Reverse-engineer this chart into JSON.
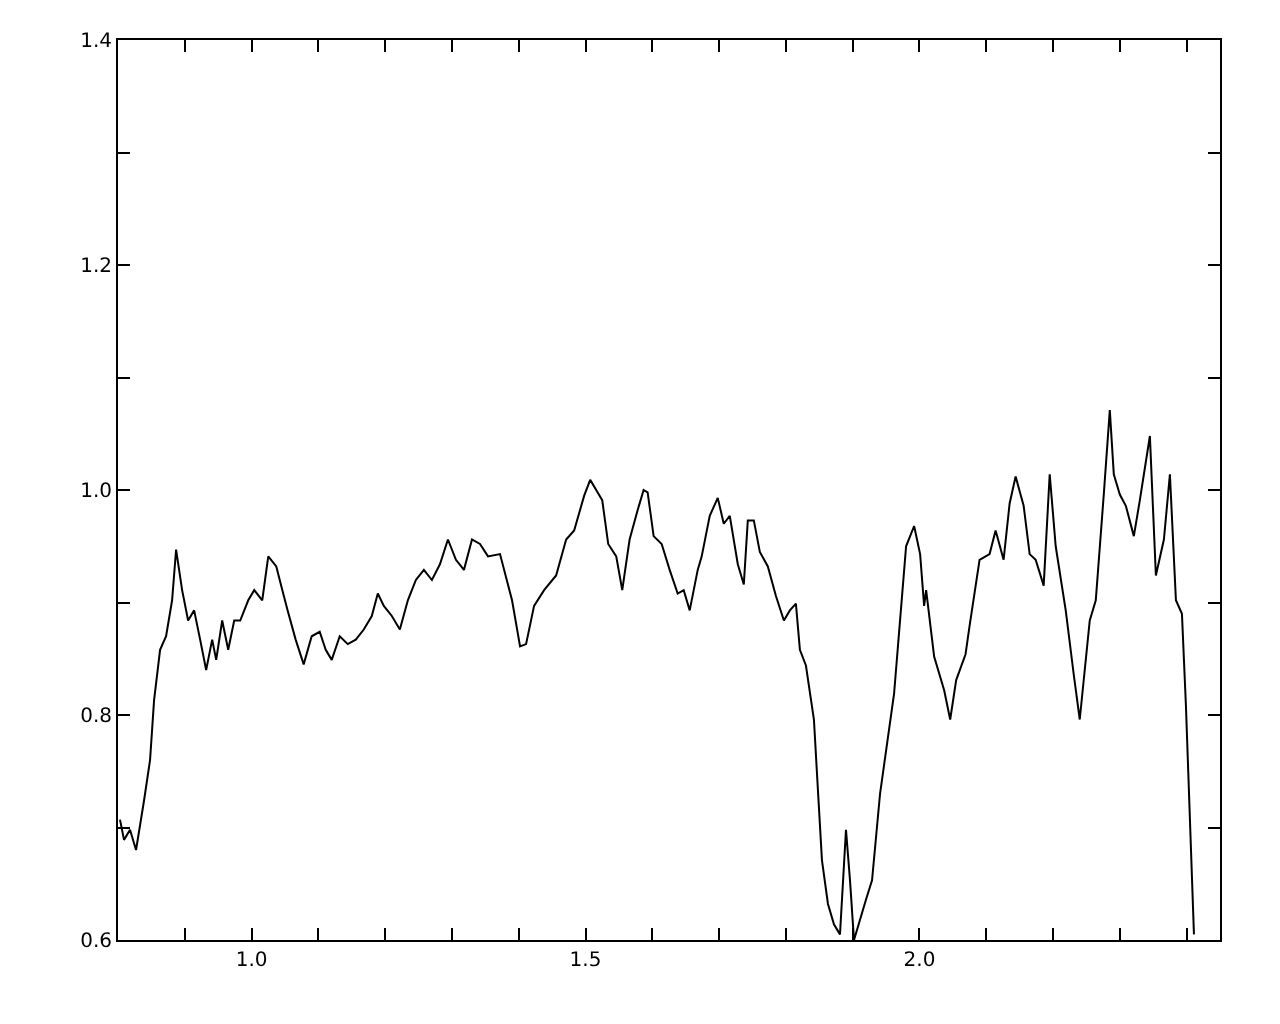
{
  "chart_data": {
    "type": "line",
    "marker": "none",
    "line_style": "solid",
    "xlim": [
      0.8,
      2.45
    ],
    "ylim": [
      0.6,
      1.4
    ],
    "xticks": [
      {
        "value": 0.9,
        "label": null
      },
      {
        "value": 1.0,
        "label": "1.0"
      },
      {
        "value": 1.1,
        "label": null
      },
      {
        "value": 1.2,
        "label": null
      },
      {
        "value": 1.3,
        "label": null
      },
      {
        "value": 1.4,
        "label": null
      },
      {
        "value": 1.5,
        "label": "1.5"
      },
      {
        "value": 1.6,
        "label": null
      },
      {
        "value": 1.7,
        "label": null
      },
      {
        "value": 1.8,
        "label": null
      },
      {
        "value": 1.9,
        "label": null
      },
      {
        "value": 2.0,
        "label": "2.0"
      },
      {
        "value": 2.1,
        "label": null
      },
      {
        "value": 2.2,
        "label": null
      },
      {
        "value": 2.3,
        "label": null
      },
      {
        "value": 2.4,
        "label": null
      }
    ],
    "yticks": [
      0.6,
      {
        "value": 0.7,
        "label": null
      },
      0.8,
      {
        "value": 0.9,
        "label": null
      },
      {
        "value": 1.0,
        "label": "1.0"
      },
      {
        "value": 1.1,
        "label": null
      },
      1.2,
      {
        "value": 1.3,
        "label": null
      },
      1.4
    ],
    "series": [
      {
        "color": "#000000",
        "x": [
          0.803,
          0.809,
          0.818,
          0.827,
          0.839,
          0.848,
          0.854,
          0.863,
          0.872,
          0.881,
          0.887,
          0.896,
          0.905,
          0.914,
          0.923,
          0.932,
          0.941,
          0.947,
          0.956,
          0.965,
          0.974,
          0.983,
          0.995,
          1.004,
          1.016,
          1.025,
          1.037,
          1.046,
          1.054,
          1.066,
          1.078,
          1.09,
          1.102,
          1.111,
          1.12,
          1.132,
          1.144,
          1.156,
          1.168,
          1.18,
          1.189,
          1.198,
          1.21,
          1.222,
          1.234,
          1.246,
          1.258,
          1.27,
          1.282,
          1.294,
          1.306,
          1.318,
          1.33,
          1.342,
          1.354,
          1.372,
          1.39,
          1.402,
          1.411,
          1.423,
          1.438,
          1.456,
          1.471,
          1.483,
          1.498,
          1.507,
          1.516,
          1.525,
          1.534,
          1.546,
          1.555,
          1.566,
          1.578,
          1.587,
          1.593,
          1.602,
          1.614,
          1.626,
          1.638,
          1.647,
          1.656,
          1.668,
          1.674,
          1.686,
          1.698,
          1.707,
          1.716,
          1.728,
          1.737,
          1.743,
          1.752,
          1.761,
          1.773,
          1.785,
          1.797,
          1.806,
          1.815,
          1.821,
          1.83,
          1.842,
          1.848,
          1.854,
          1.863,
          1.872,
          1.881,
          1.89,
          1.896,
          1.902,
          1.911,
          1.92,
          1.929,
          1.941,
          1.962,
          1.98,
          1.992,
          2.001,
          2.007,
          2.01,
          2.022,
          2.037,
          2.046,
          2.055,
          2.069,
          2.075,
          2.09,
          2.105,
          2.114,
          2.126,
          2.135,
          2.144,
          2.156,
          2.165,
          2.174,
          2.186,
          2.195,
          2.204,
          2.219,
          2.231,
          2.24,
          2.255,
          2.264,
          2.276,
          2.285,
          2.291,
          2.3,
          2.309,
          2.321,
          2.33,
          2.345,
          2.354,
          2.366,
          2.375,
          2.384,
          2.393,
          2.399,
          2.411
        ],
        "values": [
          0.707,
          0.689,
          0.698,
          0.68,
          0.724,
          0.76,
          0.813,
          0.858,
          0.87,
          0.902,
          0.947,
          0.911,
          0.884,
          0.893,
          0.867,
          0.84,
          0.867,
          0.849,
          0.884,
          0.858,
          0.884,
          0.884,
          0.902,
          0.911,
          0.902,
          0.941,
          0.932,
          0.911,
          0.893,
          0.867,
          0.845,
          0.87,
          0.874,
          0.858,
          0.849,
          0.87,
          0.863,
          0.867,
          0.876,
          0.888,
          0.908,
          0.897,
          0.888,
          0.876,
          0.902,
          0.92,
          0.929,
          0.92,
          0.934,
          0.956,
          0.938,
          0.929,
          0.956,
          0.952,
          0.941,
          0.943,
          0.902,
          0.861,
          0.863,
          0.897,
          0.911,
          0.924,
          0.956,
          0.964,
          0.995,
          1.009,
          1.0,
          0.991,
          0.952,
          0.941,
          0.911,
          0.956,
          0.982,
          1.0,
          0.998,
          0.959,
          0.952,
          0.929,
          0.908,
          0.911,
          0.893,
          0.929,
          0.941,
          0.977,
          0.993,
          0.97,
          0.977,
          0.934,
          0.916,
          0.973,
          0.973,
          0.945,
          0.932,
          0.906,
          0.884,
          0.893,
          0.899,
          0.858,
          0.844,
          0.796,
          0.733,
          0.671,
          0.632,
          0.614,
          0.605,
          0.698,
          0.653,
          0.6,
          0.618,
          0.636,
          0.653,
          0.73,
          0.819,
          0.95,
          0.968,
          0.943,
          0.897,
          0.911,
          0.852,
          0.822,
          0.796,
          0.831,
          0.854,
          0.879,
          0.938,
          0.943,
          0.964,
          0.938,
          0.988,
          1.012,
          0.986,
          0.943,
          0.938,
          0.915,
          1.014,
          0.95,
          0.893,
          0.836,
          0.796,
          0.884,
          0.902,
          0.996,
          1.071,
          1.014,
          0.996,
          0.986,
          0.959,
          0.991,
          1.048,
          0.924,
          0.956,
          1.014,
          0.902,
          0.89,
          0.808,
          0.605
        ]
      }
    ]
  }
}
